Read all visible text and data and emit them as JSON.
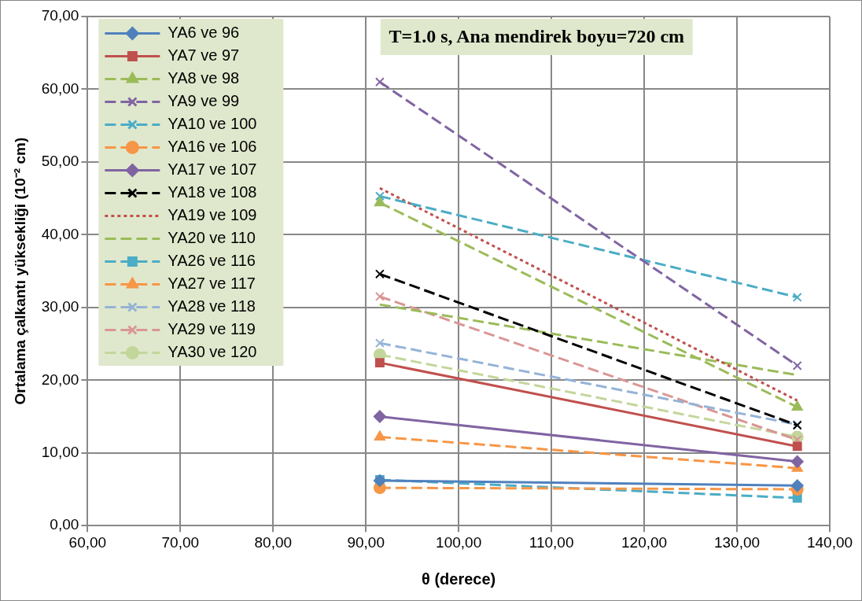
{
  "chart_data": {
    "type": "line",
    "title": "T=1.0 s, Ana mendirek boyu=720 cm",
    "xlabel": "θ (derece)",
    "ylabel": "Ortalama çalkantı yüksekliği (10⁻² cm)",
    "x": [
      91.5,
      136.5
    ],
    "xlim": [
      60,
      140
    ],
    "ylim": [
      0,
      70
    ],
    "xticks": [
      {
        "value": 60,
        "label": "60,00"
      },
      {
        "value": 70,
        "label": "70,00"
      },
      {
        "value": 80,
        "label": "80,00"
      },
      {
        "value": 90,
        "label": "90,00"
      },
      {
        "value": 100,
        "label": "100,00"
      },
      {
        "value": 110,
        "label": "110,00"
      },
      {
        "value": 120,
        "label": "120,00"
      },
      {
        "value": 130,
        "label": "130,00"
      },
      {
        "value": 140,
        "label": "140,00"
      }
    ],
    "yticks": [
      {
        "value": 0,
        "label": "0,00"
      },
      {
        "value": 10,
        "label": "10,00"
      },
      {
        "value": 20,
        "label": "20,00"
      },
      {
        "value": 30,
        "label": "30,00"
      },
      {
        "value": 40,
        "label": "40,00"
      },
      {
        "value": 50,
        "label": "50,00"
      },
      {
        "value": 60,
        "label": "60,00"
      },
      {
        "value": 70,
        "label": "70,00"
      }
    ],
    "grid": true,
    "legend": "top left",
    "series": [
      {
        "name": "YA6 ve 96",
        "color": "#4f81bd",
        "values": [
          6.2,
          5.5
        ],
        "marker": "diamond",
        "line_style": "solid"
      },
      {
        "name": "YA7 ve 97",
        "color": "#c0504d",
        "values": [
          22.4,
          10.9
        ],
        "marker": "square",
        "line_style": "solid"
      },
      {
        "name": "YA8 ve 98",
        "color": "#9bbb59",
        "values": [
          44.4,
          16.3
        ],
        "marker": "triangle",
        "line_style": "dashed"
      },
      {
        "name": "YA9 ve 99",
        "color": "#8064a2",
        "values": [
          61.0,
          22.0
        ],
        "marker": "cross",
        "line_style": "dashed"
      },
      {
        "name": "YA10 ve 100",
        "color": "#4bacc6",
        "values": [
          45.3,
          31.4
        ],
        "marker": "cross",
        "line_style": "dashed"
      },
      {
        "name": "YA16 ve 106",
        "color": "#f79646",
        "values": [
          5.2,
          5.0
        ],
        "marker": "circle",
        "line_style": "dashed"
      },
      {
        "name": "YA17 ve 107",
        "color": "#8064a2",
        "values": [
          15.0,
          8.8
        ],
        "marker": "diamond",
        "line_style": "solid"
      },
      {
        "name": "YA18 ve 108",
        "color": "#000000",
        "values": [
          34.6,
          13.8
        ],
        "marker": "cross",
        "line_style": "dashed"
      },
      {
        "name": "YA19 ve 109",
        "color": "#c0504d",
        "values": [
          46.4,
          17.2
        ],
        "marker": "none",
        "line_style": "dotted"
      },
      {
        "name": "YA20 ve 110",
        "color": "#9bbb59",
        "values": [
          30.4,
          20.7
        ],
        "marker": "none",
        "line_style": "dashed"
      },
      {
        "name": "YA26 ve 116",
        "color": "#4bacc6",
        "values": [
          6.3,
          3.8
        ],
        "marker": "square",
        "line_style": "dashed"
      },
      {
        "name": "YA27 ve 117",
        "color": "#f79646",
        "values": [
          12.2,
          7.9
        ],
        "marker": "triangle",
        "line_style": "dashed"
      },
      {
        "name": "YA28 ve 118",
        "color": "#95b3d7",
        "values": [
          25.1,
          13.9
        ],
        "marker": "cross",
        "line_style": "dashed"
      },
      {
        "name": "YA29 ve 119",
        "color": "#d99694",
        "values": [
          31.5,
          11.8
        ],
        "marker": "cross",
        "line_style": "dashed"
      },
      {
        "name": "YA30 ve 120",
        "color": "#c3d69b",
        "values": [
          23.5,
          12.2
        ],
        "marker": "circle",
        "line_style": "dashed"
      }
    ]
  }
}
